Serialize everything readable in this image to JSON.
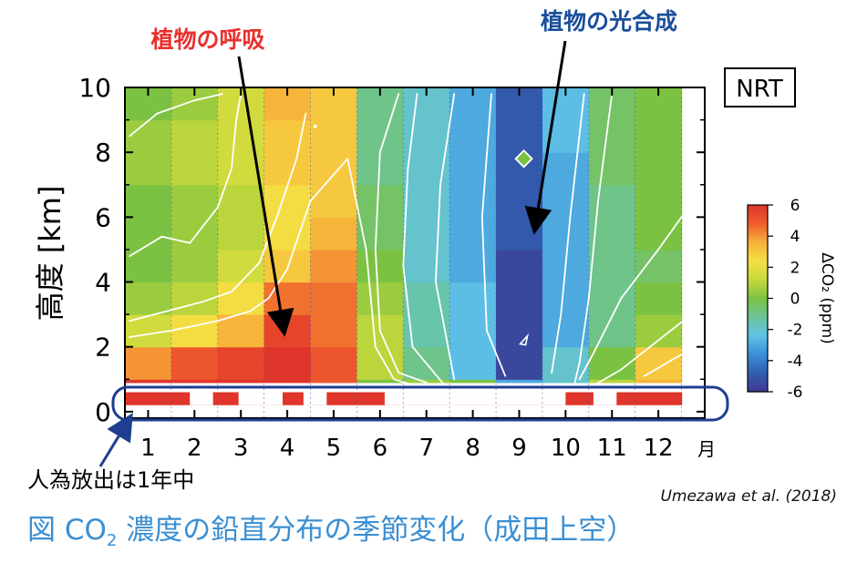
{
  "caption": {
    "prefix": "図 CO",
    "sub": "2",
    "suffix": " 濃度の鉛直分布の季節変化（成田上空）"
  },
  "citation": "Umezawa et al. (2018)",
  "colors": {
    "annotation_red": "#e8302d",
    "annotation_blue": "#1a4f9a",
    "caption_blue": "#3b8fd2",
    "highlight_box": "#1e3f8f",
    "colorscale": [
      "#403890",
      "#2f5fb0",
      "#3a8fd6",
      "#60c2e6",
      "#6cc498",
      "#7cc242",
      "#c7d93c",
      "#f4e044",
      "#f7b039",
      "#ef5c2c",
      "#e0352b"
    ]
  },
  "chart_data": {
    "type": "heatmap",
    "title": "",
    "xlabel": "",
    "ylabel": "高度 [km]",
    "x_month_suffix": "月",
    "x_categories": [
      "1",
      "2",
      "3",
      "4",
      "5",
      "6",
      "7",
      "8",
      "9",
      "10",
      "11",
      "12"
    ],
    "x_range": [
      0.5,
      13.0
    ],
    "ylim": [
      -0.2,
      10
    ],
    "y_ticks": [
      "0",
      "2",
      "4",
      "6",
      "8",
      "10"
    ],
    "y_layer_bottoms": [
      0.9,
      1.0,
      2.0,
      3.0,
      4.0,
      5.0,
      6.0,
      7.0,
      8.0,
      9.0
    ],
    "y_layer_tops": [
      1.0,
      2.0,
      3.0,
      4.0,
      5.0,
      6.0,
      7.0,
      8.0,
      9.0,
      10.0
    ],
    "values": [
      [
        6,
        4,
        1.5,
        0.5,
        0,
        0,
        0,
        0.5,
        0.5,
        0
      ],
      [
        6,
        5,
        2.5,
        1,
        0.5,
        0.5,
        0.5,
        1,
        1,
        0.5
      ],
      [
        6,
        5.5,
        3.5,
        2.5,
        1.5,
        1,
        1,
        1.5,
        1.5,
        1.5
      ],
      [
        6,
        6,
        5.5,
        4.5,
        3,
        2.5,
        2.5,
        3,
        3,
        3.5
      ],
      [
        5,
        5,
        4.5,
        4.5,
        4,
        3.5,
        3,
        3,
        3,
        3
      ],
      [
        0,
        1,
        1,
        0.5,
        0,
        -0.5,
        -0.5,
        -1,
        -1,
        -1
      ],
      [
        0.5,
        -1,
        -1.5,
        -1.5,
        -2,
        -2,
        -2,
        -2,
        -2,
        -2
      ],
      [
        0,
        -2.5,
        -2.5,
        -2.5,
        -3,
        -3,
        -3,
        -3,
        -3,
        -3
      ],
      [
        -3,
        -5.5,
        -5.5,
        -5.5,
        -5.5,
        -5,
        -5,
        -5,
        -5,
        -5
      ],
      [
        -2,
        -2,
        -3,
        -3,
        -3,
        -3,
        -3,
        -3,
        -2.5,
        -2.5
      ],
      [
        1,
        0,
        -1,
        -1,
        -1,
        -1,
        -1,
        -0.5,
        -0.5,
        -0.5
      ],
      [
        3.5,
        3,
        0.5,
        0,
        -0.5,
        0,
        0,
        0,
        0,
        0
      ]
    ],
    "surface_band": {
      "y_range": [
        0.2,
        0.6
      ],
      "values": [
        6,
        6,
        6,
        6,
        6,
        6,
        6,
        6,
        6,
        6,
        6,
        6
      ],
      "gaps": [
        [
          1.9,
          2.4
        ],
        [
          2.95,
          3.9
        ],
        [
          4.35,
          4.85
        ],
        [
          6.1,
          10.0
        ],
        [
          10.6,
          11.1
        ]
      ]
    },
    "colorbar": {
      "label": "ΔCO₂ (ppm)",
      "range": [
        -6,
        6
      ],
      "ticks": [
        "6",
        "4",
        "2",
        "0",
        "-2",
        "-4",
        "-6"
      ]
    },
    "contour_lines": [
      [
        [
          0.6,
          8.5
        ],
        [
          1.2,
          9.2
        ],
        [
          2.0,
          9.6
        ],
        [
          2.6,
          9.8
        ]
      ],
      [
        [
          0.6,
          4.8
        ],
        [
          1.3,
          5.4
        ],
        [
          1.9,
          5.2
        ],
        [
          2.5,
          6.3
        ],
        [
          2.8,
          7.5
        ],
        [
          2.9,
          9.0
        ],
        [
          3.0,
          9.8
        ]
      ],
      [
        [
          0.6,
          2.8
        ],
        [
          1.4,
          3.1
        ],
        [
          2.2,
          3.4
        ],
        [
          2.8,
          3.7
        ],
        [
          3.4,
          4.6
        ],
        [
          3.8,
          6.1
        ],
        [
          4.2,
          7.8
        ],
        [
          4.4,
          9.2
        ]
      ],
      [
        [
          0.6,
          2.3
        ],
        [
          1.5,
          2.5
        ],
        [
          2.5,
          2.8
        ],
        [
          3.2,
          3.1
        ],
        [
          3.6,
          3.5
        ],
        [
          4.0,
          4.4
        ],
        [
          4.5,
          6.5
        ],
        [
          5.3,
          7.8
        ],
        [
          5.7,
          5.0
        ],
        [
          5.9,
          2.0
        ],
        [
          6.3,
          1.0
        ],
        [
          7.2,
          0.6
        ]
      ],
      [
        [
          6.4,
          9.8
        ],
        [
          6.0,
          8.0
        ],
        [
          5.9,
          5.0
        ],
        [
          6.0,
          2.5
        ],
        [
          6.4,
          1.2
        ],
        [
          7.0,
          0.9
        ]
      ],
      [
        [
          6.8,
          9.8
        ],
        [
          6.6,
          7.5
        ],
        [
          6.5,
          4.5
        ],
        [
          6.7,
          2.0
        ],
        [
          7.4,
          0.8
        ]
      ],
      [
        [
          7.6,
          9.8
        ],
        [
          7.3,
          7.0
        ],
        [
          7.2,
          4.0
        ],
        [
          7.6,
          1.0
        ]
      ],
      [
        [
          8.4,
          9.8
        ],
        [
          8.2,
          6.0
        ],
        [
          8.3,
          2.5
        ],
        [
          8.7,
          1.1
        ]
      ],
      [
        [
          10.4,
          9.8
        ],
        [
          10.1,
          6.0
        ],
        [
          9.9,
          3.0
        ],
        [
          9.7,
          1.2
        ]
      ],
      [
        [
          11.0,
          9.8
        ],
        [
          10.7,
          6.5
        ],
        [
          10.5,
          3.5
        ],
        [
          10.3,
          1.5
        ],
        [
          10.2,
          0.9
        ]
      ],
      [
        [
          12.8,
          6.6
        ],
        [
          12.0,
          5.0
        ],
        [
          11.2,
          3.5
        ],
        [
          10.6,
          1.8
        ],
        [
          10.3,
          1.0
        ]
      ],
      [
        [
          12.8,
          3.1
        ],
        [
          12.0,
          2.2
        ],
        [
          11.2,
          1.3
        ],
        [
          10.6,
          0.8
        ]
      ],
      [
        [
          12.8,
          2.0
        ],
        [
          12.3,
          1.6
        ],
        [
          11.7,
          1.1
        ]
      ]
    ],
    "contour_marks": [
      {
        "shape": "diamond",
        "x": 9.1,
        "y": 7.8
      },
      {
        "shape": "small-loop",
        "x": 9.1,
        "y": 2.2
      },
      {
        "shape": "dot",
        "x": 4.6,
        "y": 8.8
      }
    ],
    "annotations": [
      {
        "text": "植物の呼吸",
        "color": "red"
      },
      {
        "text": "植物の光合成",
        "color": "blue"
      },
      {
        "text": "人為放出は1年中",
        "color": "black"
      },
      {
        "text": "NRT",
        "color": "black"
      }
    ]
  }
}
